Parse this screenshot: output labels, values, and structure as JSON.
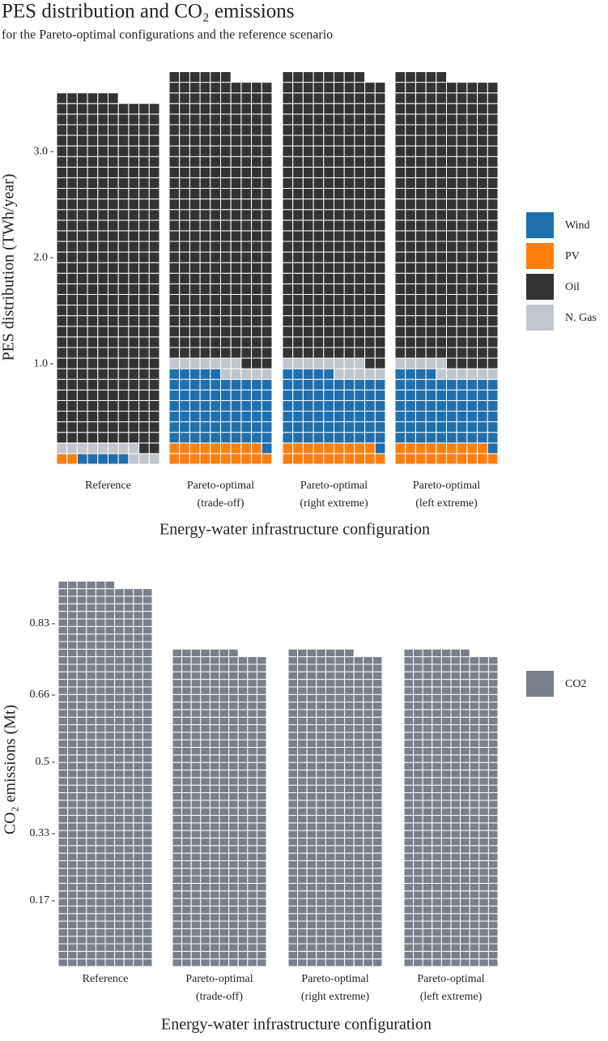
{
  "chart_data": [
    {
      "type": "waffle",
      "title": "PES distribution and CO₂ emissions",
      "subtitle": "for the Pareto-optimal configurations and the reference scenario",
      "y_label": "PES distribution (TWh/year)",
      "x_label": "Energy-water infrastructure configuration",
      "categories": [
        "Reference",
        "Pareto-optimal\n(trade-off)",
        "Pareto-optimal\n(right extreme)",
        "Pareto-optimal\n(left extreme)"
      ],
      "series": [
        {
          "name": "Wind",
          "color": "#1f6fad",
          "values": [
            0.05,
            0.66,
            0.66,
            0.65
          ]
        },
        {
          "name": "PV",
          "color": "#ff7f0e",
          "values": [
            0.02,
            0.19,
            0.19,
            0.19
          ]
        },
        {
          "name": "Oil",
          "color": "#333333",
          "values": [
            3.28,
            2.69,
            2.7,
            2.7
          ]
        },
        {
          "name": "N. Gas",
          "color": "#c2c6cc",
          "values": [
            0.11,
            0.12,
            0.13,
            0.11
          ]
        }
      ],
      "ylim": [
        0,
        3.78
      ],
      "yticks": [
        {
          "value": 1,
          "label": "1.0"
        },
        {
          "value": 2,
          "label": "2.0"
        },
        {
          "value": 3,
          "label": "3.0"
        }
      ],
      "legend": "right"
    },
    {
      "type": "waffle",
      "y_label": "CO₂ emissions (Mt)",
      "x_label": "Energy-water infrastructure configuration",
      "categories": [
        "Reference",
        "Pareto-optimal\n(trade-off)",
        "Pareto-optimal\n(right extreme)",
        "Pareto-optimal\n(left extreme)"
      ],
      "series": [
        {
          "name": "CO2",
          "color": "#7a7f8a",
          "values": [
            0.91,
            0.75,
            0.75,
            0.75
          ]
        }
      ],
      "ylim": [
        0,
        0.936
      ],
      "yticks": [
        0.17,
        0.33,
        0.5,
        0.66,
        0.83
      ],
      "legend": "right"
    }
  ]
}
